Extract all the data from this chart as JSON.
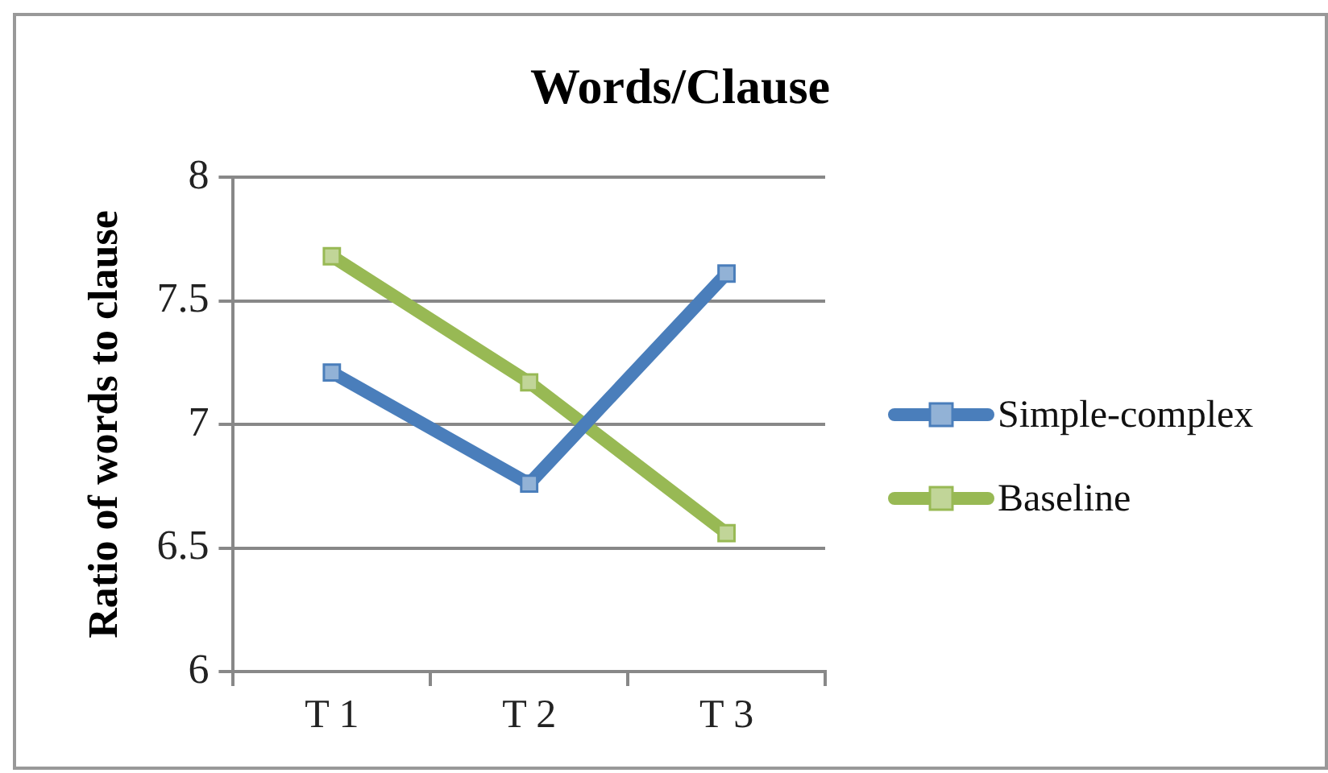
{
  "chart_data": {
    "type": "line",
    "title": "Words/Clause",
    "ylabel": "Ratio of words to clause",
    "categories": [
      "T 1",
      "T 2",
      "T 3"
    ],
    "series": [
      {
        "name": "Simple-complex",
        "color": "#4a7ebb",
        "values": [
          7.21,
          6.76,
          7.61
        ]
      },
      {
        "name": "Baseline",
        "color": "#98b954",
        "values": [
          7.68,
          7.17,
          6.56
        ]
      }
    ],
    "ylim": [
      6,
      8
    ],
    "yticks": [
      6,
      6.5,
      7,
      7.5,
      8
    ],
    "grid": "y",
    "legend": "right",
    "marker": "square",
    "line_style": "solid"
  }
}
